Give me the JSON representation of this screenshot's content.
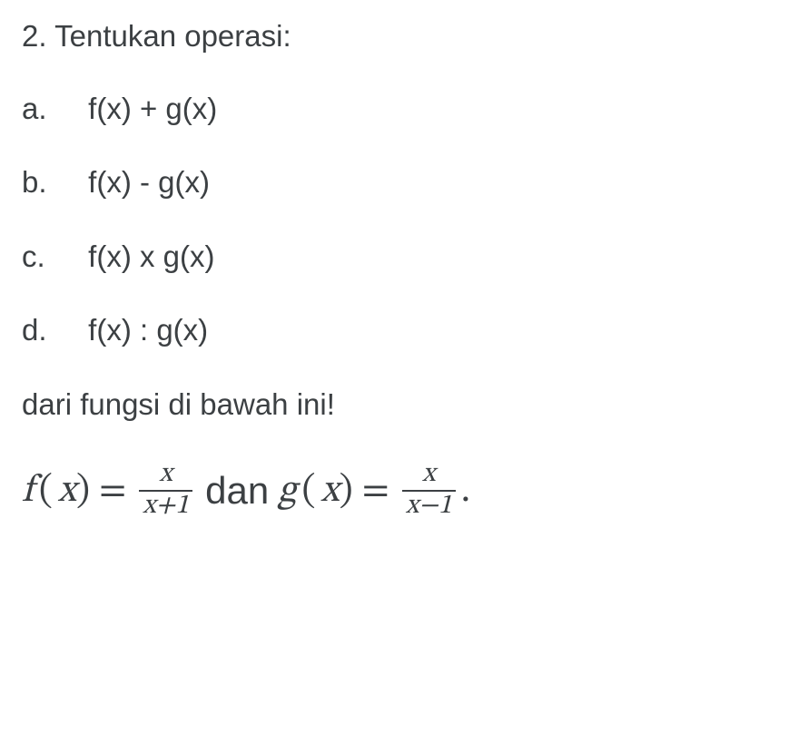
{
  "question": {
    "number": "2.",
    "prompt": "Tentukan operasi:"
  },
  "items": {
    "a": {
      "label": "a.",
      "expr": "f(x) + g(x)"
    },
    "b": {
      "label": "b.",
      "expr": "f(x) - g(x)"
    },
    "c": {
      "label": "c.",
      "expr": "f(x) x g(x)"
    },
    "d": {
      "label": "d.",
      "expr": "f(x) : g(x)"
    }
  },
  "closing": "dari fungsi di bawah ini!",
  "equation": {
    "f_name": "f",
    "g_name": "g",
    "arg_open": "(",
    "arg_var": "x",
    "arg_close": ")",
    "equals": "=",
    "f_num": "x",
    "f_den": "x+1",
    "connector": "dan",
    "g_num": "x",
    "g_den": "x−1",
    "period": "."
  },
  "colors": {
    "text": "#3c4043",
    "background": "#ffffff"
  },
  "fontsizes": {
    "body": 33,
    "equation": 42,
    "fraction": 30
  }
}
